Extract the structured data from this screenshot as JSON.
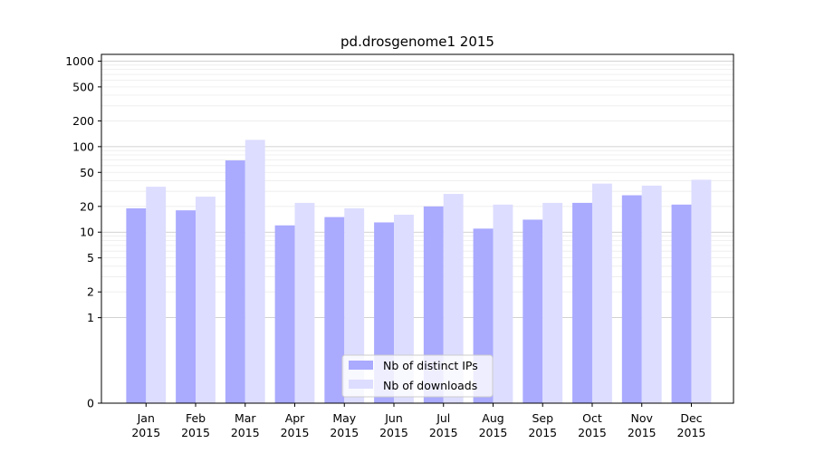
{
  "chart_data": {
    "type": "bar",
    "title": "pd.drosgenome1 2015",
    "xlabel": "",
    "ylabel": "",
    "yscale": "symlog",
    "ylim": [
      0,
      1200
    ],
    "yticks": [
      0,
      1,
      2,
      5,
      10,
      20,
      50,
      100,
      200,
      500,
      1000
    ],
    "grid": true,
    "legend_placement": "bottom-center",
    "categories": [
      [
        "Jan",
        "2015"
      ],
      [
        "Feb",
        "2015"
      ],
      [
        "Mar",
        "2015"
      ],
      [
        "Apr",
        "2015"
      ],
      [
        "May",
        "2015"
      ],
      [
        "Jun",
        "2015"
      ],
      [
        "Jul",
        "2015"
      ],
      [
        "Aug",
        "2015"
      ],
      [
        "Sep",
        "2015"
      ],
      [
        "Oct",
        "2015"
      ],
      [
        "Nov",
        "2015"
      ],
      [
        "Dec",
        "2015"
      ]
    ],
    "series": [
      {
        "name": "Nb of distinct IPs",
        "color": "#aaaaff",
        "values": [
          19,
          18,
          69,
          12,
          15,
          13,
          20,
          11,
          14,
          22,
          27,
          21
        ]
      },
      {
        "name": "Nb of downloads",
        "color": "#ddddff",
        "values": [
          34,
          26,
          120,
          22,
          19,
          16,
          28,
          21,
          22,
          37,
          35,
          41
        ]
      }
    ]
  }
}
